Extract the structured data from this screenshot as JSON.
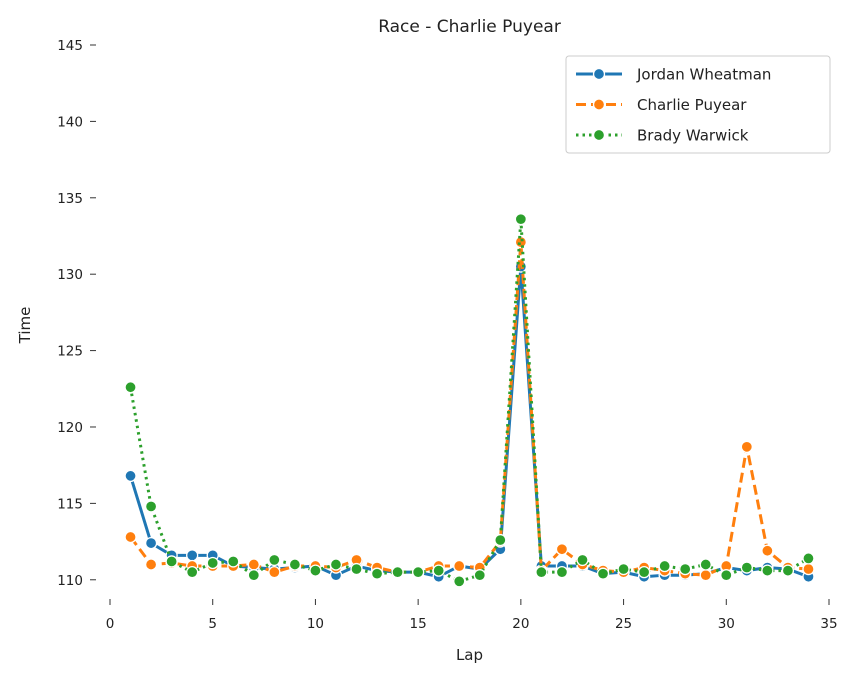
{
  "chart_data": {
    "type": "line",
    "title": "Race - Charlie Puyear",
    "xlabel": "Lap",
    "ylabel": "Time",
    "xlim": [
      0,
      35
    ],
    "ylim": [
      109.2,
      145
    ],
    "xticks": [
      0,
      5,
      10,
      15,
      20,
      25,
      30,
      35
    ],
    "yticks": [
      110,
      115,
      120,
      125,
      130,
      135,
      140,
      145
    ],
    "grid": false,
    "legend_position": "top-right",
    "x": [
      1,
      2,
      3,
      4,
      5,
      6,
      7,
      8,
      9,
      10,
      11,
      12,
      13,
      14,
      15,
      16,
      17,
      18,
      19,
      20,
      21,
      22,
      23,
      24,
      25,
      26,
      27,
      28,
      29,
      30,
      31,
      32,
      33,
      34
    ],
    "series": [
      {
        "name": "Jordan Wheatman",
        "color": "#1f77b4",
        "linestyle": "solid",
        "values": [
          116.8,
          112.4,
          111.6,
          111.6,
          111.6,
          110.9,
          110.8,
          110.7,
          110.8,
          110.9,
          110.3,
          110.9,
          110.6,
          110.5,
          110.5,
          110.2,
          110.9,
          110.7,
          112.0,
          130.5,
          110.9,
          110.9,
          110.9,
          110.4,
          110.5,
          110.2,
          110.3,
          110.3,
          110.4,
          110.8,
          110.6,
          110.8,
          110.7,
          110.2
        ]
      },
      {
        "name": "Charlie Puyear",
        "color": "#ff7f0e",
        "linestyle": "dashed",
        "values": [
          112.8,
          111.0,
          111.1,
          110.9,
          110.9,
          110.9,
          111.0,
          110.5,
          110.9,
          110.9,
          110.8,
          111.3,
          110.8,
          110.5,
          110.5,
          110.9,
          110.9,
          110.8,
          112.5,
          132.1,
          110.6,
          112.0,
          111.0,
          110.6,
          110.5,
          110.8,
          110.6,
          110.4,
          110.3,
          110.9,
          118.7,
          111.9,
          110.8,
          110.7
        ]
      },
      {
        "name": "Brady Warwick",
        "color": "#2ca02c",
        "linestyle": "dotted",
        "values": [
          122.6,
          114.8,
          111.2,
          110.5,
          111.1,
          111.2,
          110.3,
          111.3,
          111.0,
          110.6,
          111.0,
          110.7,
          110.4,
          110.5,
          110.5,
          110.6,
          109.9,
          110.3,
          112.6,
          133.6,
          110.5,
          110.5,
          111.3,
          110.4,
          110.7,
          110.5,
          110.9,
          110.7,
          111.0,
          110.3,
          110.8,
          110.6,
          110.6,
          111.4
        ]
      }
    ]
  }
}
